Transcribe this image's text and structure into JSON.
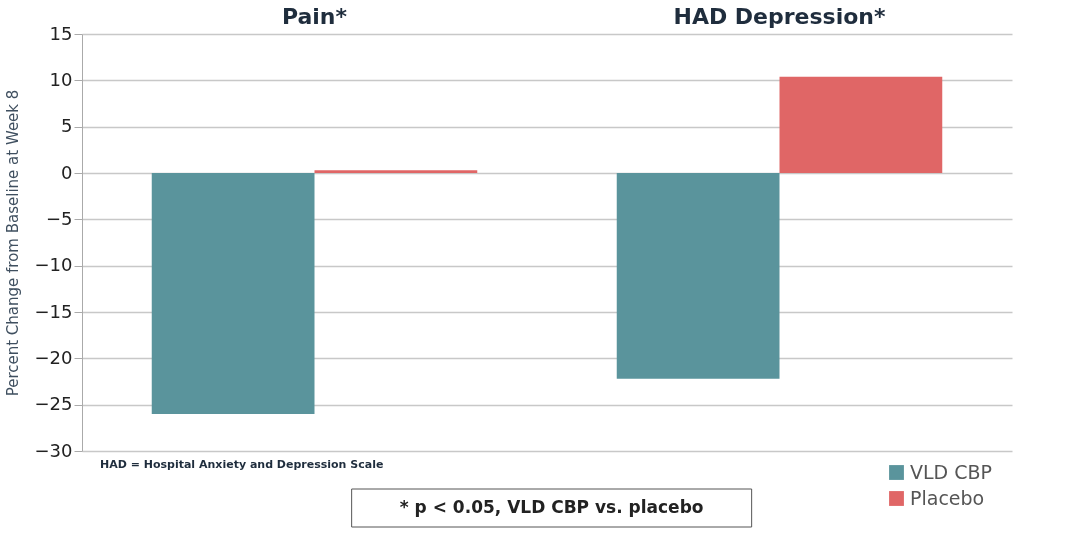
{
  "chart_data": {
    "type": "bar",
    "categories": [
      "Pain*",
      "HAD Depression*"
    ],
    "ylabel": "Percent Change from Baseline at Week 8",
    "series": [
      {
        "name": "VLD CBP",
        "color": "#5a949c",
        "values": [
          -26,
          -22.2
        ]
      },
      {
        "name": "Placebo",
        "color": "#e06666",
        "values": [
          0.3,
          10.4
        ]
      }
    ],
    "ylim": [
      -30,
      15
    ],
    "yticks": [
      -30,
      -25,
      -20,
      -15,
      -10,
      -5,
      0,
      5,
      10,
      15
    ],
    "grid": "y",
    "legend": "bottom right",
    "annotations": [
      "HAD = Hospital Anxiety and Depression Scale",
      "* p < 0.05,  VLD CBP vs. placebo"
    ]
  }
}
